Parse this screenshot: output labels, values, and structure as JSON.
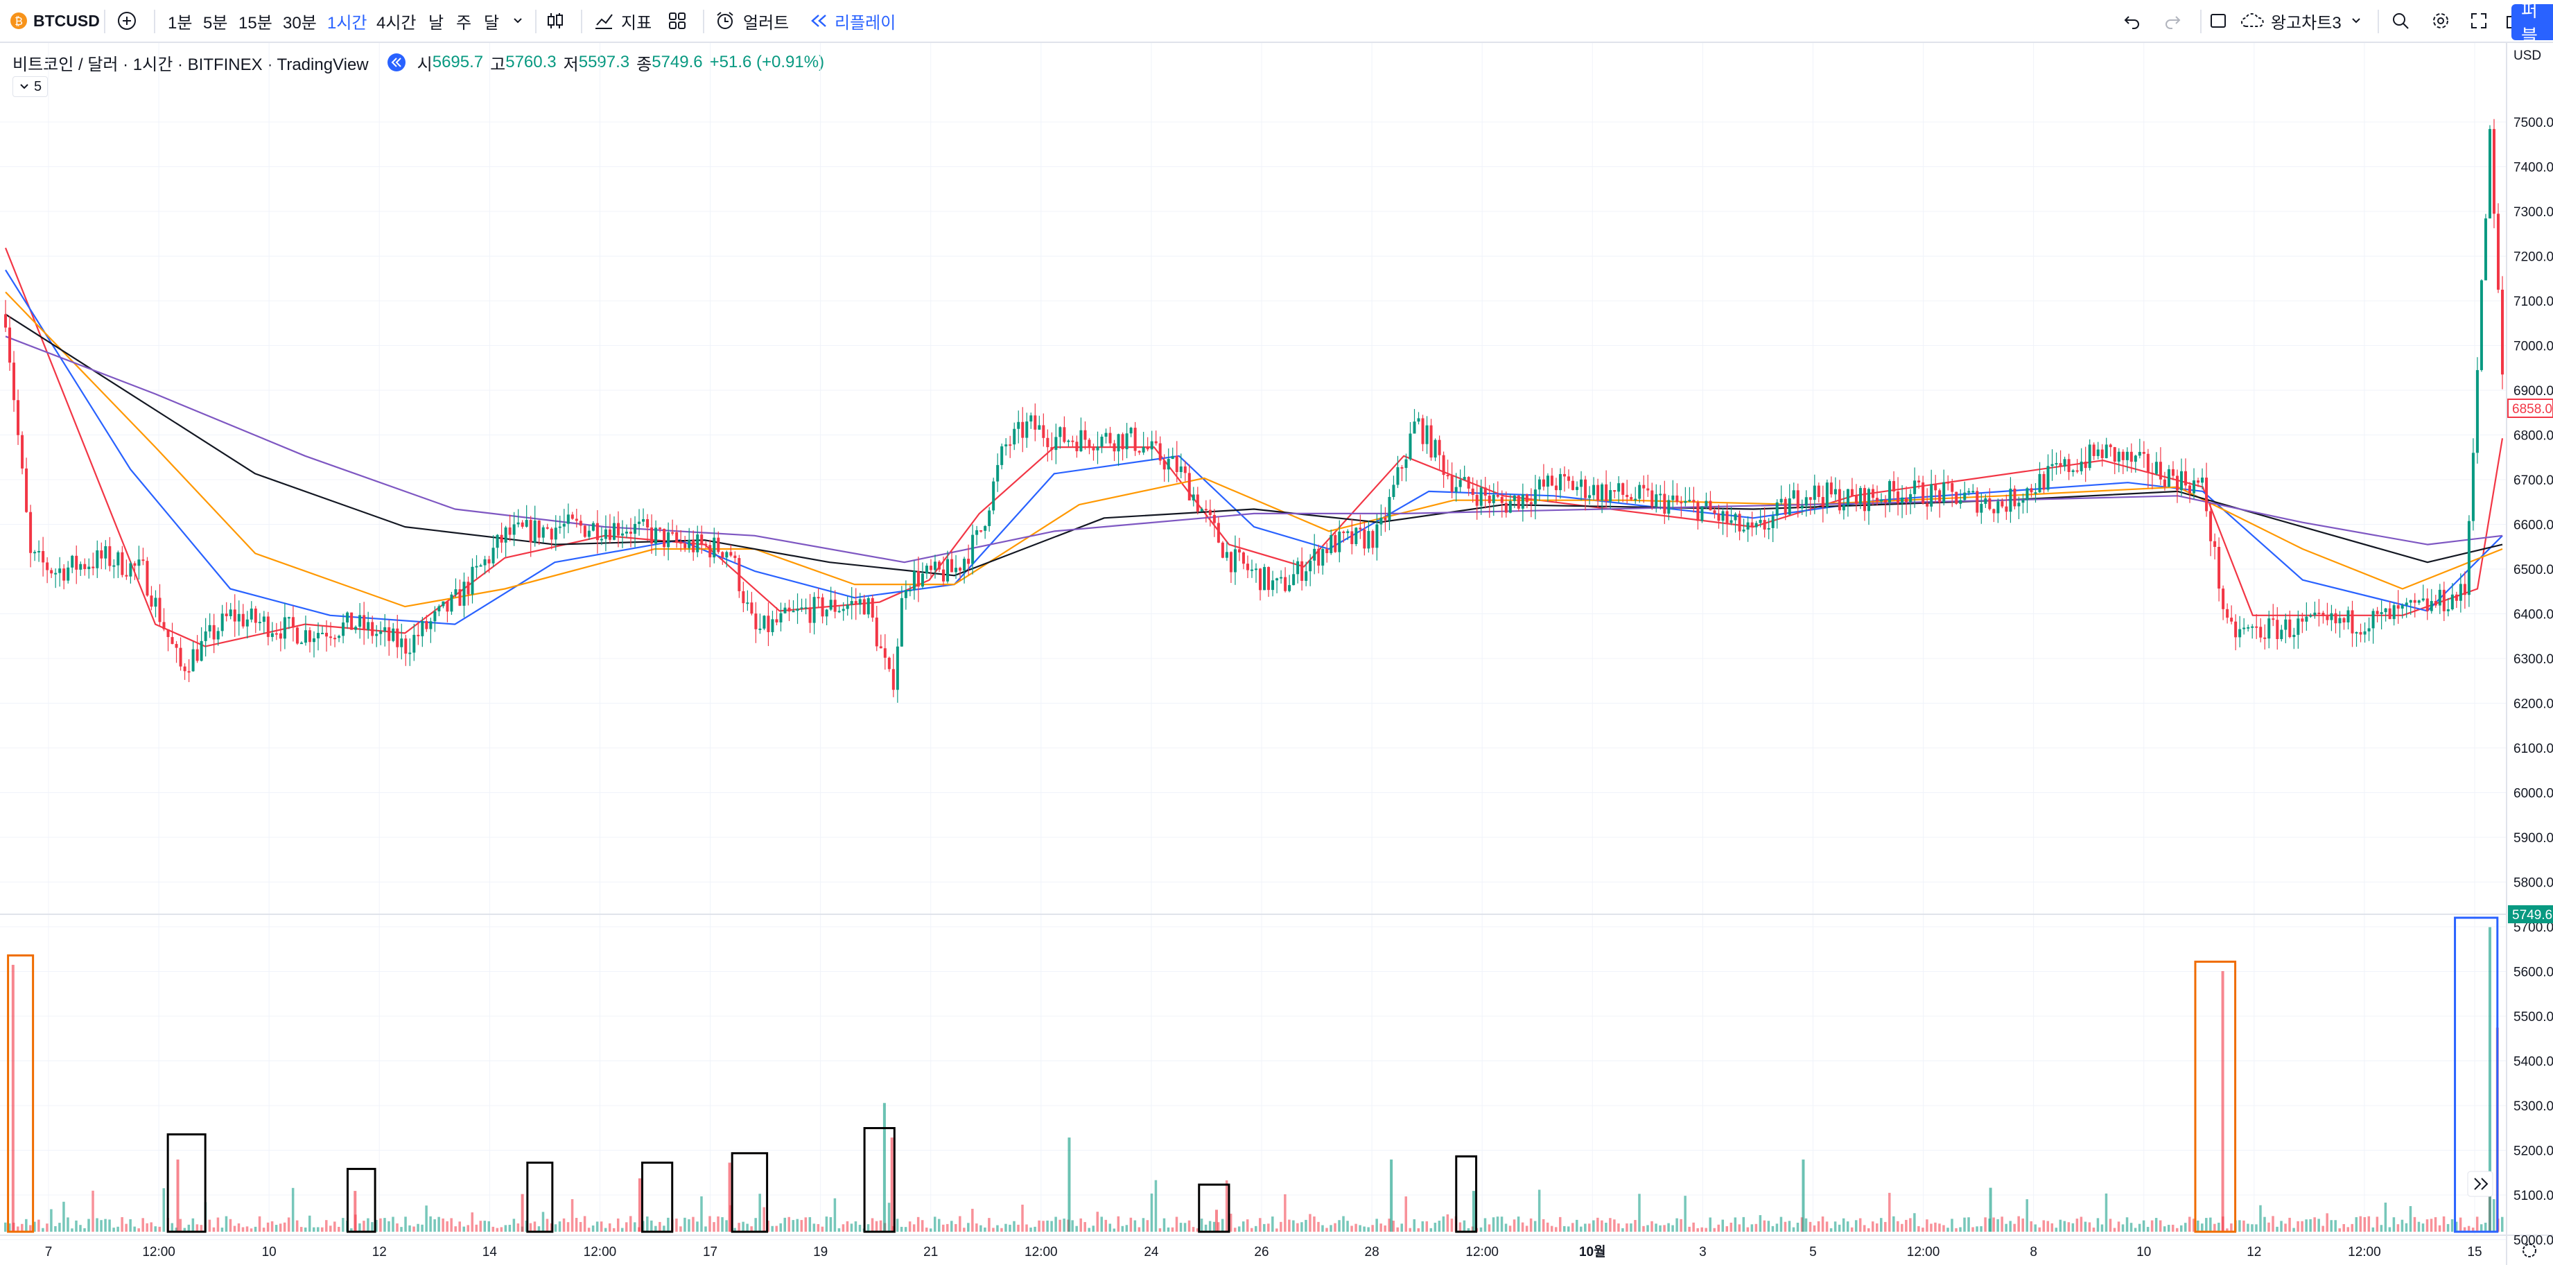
{
  "toolbar": {
    "symbol": "BTCUSD",
    "intervals": [
      "1분",
      "5분",
      "15분",
      "30분",
      "1시간",
      "4시간",
      "날",
      "주",
      "달"
    ],
    "active_interval": "1시간",
    "indicators_label": "지표",
    "alert_label": "얼러트",
    "replay_label": "리플레이",
    "layout_name": "왕고차트3",
    "publish_label": "퍼블"
  },
  "legend": {
    "title": "비트코인 / 달러 · 1시간 · BITFINEX · TradingView",
    "o_label": "시",
    "o_value": "5695.7",
    "h_label": "고",
    "h_value": "5760.3",
    "l_label": "저",
    "l_value": "5597.3",
    "c_label": "종",
    "c_value": "5749.6",
    "change": "+51.6 (+0.91%)",
    "collapse": "5"
  },
  "price_axis": {
    "currency": "USD",
    "labels": [
      "7500.0",
      "7400.0",
      "7300.0",
      "7200.0",
      "7100.0",
      "7000.0",
      "6900.0",
      "6800.0",
      "6700.0",
      "6600.0",
      "6500.0",
      "6400.0",
      "6300.0",
      "6200.0",
      "6100.0",
      "6000.0",
      "5900.0",
      "5800.0",
      "5700.0",
      "5600.0",
      "5500.0",
      "5400.0",
      "5300.0",
      "5200.0",
      "5100.0",
      "5000.0"
    ],
    "badge_red": "6858.0",
    "badge_green": "5749.6"
  },
  "time_axis": {
    "labels": [
      "7",
      "12:00",
      "10",
      "12",
      "14",
      "12:00",
      "17",
      "19",
      "21",
      "12:00",
      "24",
      "26",
      "28",
      "12:00",
      "10월",
      "3",
      "5",
      "12:00",
      "8",
      "10",
      "12",
      "12:00",
      "15"
    ]
  },
  "colors": {
    "up": "#089981",
    "down": "#f23645",
    "ma_red": "#f23645",
    "ma_blue": "#2962ff",
    "ma_orange": "#ff9800",
    "ma_black": "#131722",
    "ma_purple": "#7e57c2",
    "box_black": "#000000",
    "box_orange": "#ef6c00",
    "box_blue": "#2962ff"
  },
  "chart_data": {
    "type": "line",
    "price_range": [
      5750,
      7550
    ],
    "close_path": [
      {
        "t": 0,
        "p": 7000
      },
      {
        "t": 0.01,
        "p": 6450
      },
      {
        "t": 0.02,
        "p": 6420
      },
      {
        "t": 0.04,
        "p": 6450
      },
      {
        "t": 0.055,
        "p": 6420
      },
      {
        "t": 0.07,
        "p": 6200
      },
      {
        "t": 0.09,
        "p": 6320
      },
      {
        "t": 0.12,
        "p": 6280
      },
      {
        "t": 0.14,
        "p": 6300
      },
      {
        "t": 0.16,
        "p": 6250
      },
      {
        "t": 0.18,
        "p": 6350
      },
      {
        "t": 0.2,
        "p": 6500
      },
      {
        "t": 0.22,
        "p": 6520
      },
      {
        "t": 0.25,
        "p": 6520
      },
      {
        "t": 0.27,
        "p": 6480
      },
      {
        "t": 0.29,
        "p": 6470
      },
      {
        "t": 0.3,
        "p": 6280
      },
      {
        "t": 0.32,
        "p": 6330
      },
      {
        "t": 0.345,
        "p": 6350
      },
      {
        "t": 0.355,
        "p": 6150
      },
      {
        "t": 0.36,
        "p": 6400
      },
      {
        "t": 0.38,
        "p": 6420
      },
      {
        "t": 0.39,
        "p": 6500
      },
      {
        "t": 0.4,
        "p": 6700
      },
      {
        "t": 0.41,
        "p": 6750
      },
      {
        "t": 0.42,
        "p": 6720
      },
      {
        "t": 0.45,
        "p": 6720
      },
      {
        "t": 0.47,
        "p": 6650
      },
      {
        "t": 0.49,
        "p": 6450
      },
      {
        "t": 0.51,
        "p": 6380
      },
      {
        "t": 0.53,
        "p": 6480
      },
      {
        "t": 0.55,
        "p": 6500
      },
      {
        "t": 0.565,
        "p": 6760
      },
      {
        "t": 0.58,
        "p": 6620
      },
      {
        "t": 0.6,
        "p": 6570
      },
      {
        "t": 0.62,
        "p": 6620
      },
      {
        "t": 0.64,
        "p": 6600
      },
      {
        "t": 0.66,
        "p": 6580
      },
      {
        "t": 0.68,
        "p": 6560
      },
      {
        "t": 0.7,
        "p": 6500
      },
      {
        "t": 0.72,
        "p": 6600
      },
      {
        "t": 0.74,
        "p": 6580
      },
      {
        "t": 0.76,
        "p": 6600
      },
      {
        "t": 0.78,
        "p": 6590
      },
      {
        "t": 0.8,
        "p": 6570
      },
      {
        "t": 0.82,
        "p": 6640
      },
      {
        "t": 0.84,
        "p": 6690
      },
      {
        "t": 0.86,
        "p": 6650
      },
      {
        "t": 0.88,
        "p": 6610
      },
      {
        "t": 0.89,
        "p": 6280
      },
      {
        "t": 0.91,
        "p": 6290
      },
      {
        "t": 0.93,
        "p": 6300
      },
      {
        "t": 0.95,
        "p": 6310
      },
      {
        "t": 0.97,
        "p": 6340
      },
      {
        "t": 0.985,
        "p": 6370
      },
      {
        "t": 0.995,
        "p": 7400
      },
      {
        "t": 1.0,
        "p": 6860
      }
    ],
    "moving_averages": [
      {
        "color": "#f23645",
        "points": [
          [
            0,
            7150
          ],
          [
            0.06,
            6300
          ],
          [
            0.08,
            6250
          ],
          [
            0.12,
            6300
          ],
          [
            0.16,
            6280
          ],
          [
            0.2,
            6450
          ],
          [
            0.24,
            6500
          ],
          [
            0.28,
            6480
          ],
          [
            0.31,
            6330
          ],
          [
            0.35,
            6350
          ],
          [
            0.37,
            6400
          ],
          [
            0.39,
            6550
          ],
          [
            0.42,
            6700
          ],
          [
            0.46,
            6700
          ],
          [
            0.49,
            6480
          ],
          [
            0.52,
            6430
          ],
          [
            0.56,
            6680
          ],
          [
            0.6,
            6590
          ],
          [
            0.7,
            6520
          ],
          [
            0.74,
            6590
          ],
          [
            0.84,
            6670
          ],
          [
            0.88,
            6610
          ],
          [
            0.9,
            6320
          ],
          [
            0.96,
            6320
          ],
          [
            0.99,
            6380
          ],
          [
            1.0,
            6720
          ]
        ]
      },
      {
        "color": "#2962ff",
        "points": [
          [
            0,
            7100
          ],
          [
            0.05,
            6650
          ],
          [
            0.09,
            6380
          ],
          [
            0.13,
            6320
          ],
          [
            0.18,
            6300
          ],
          [
            0.22,
            6440
          ],
          [
            0.27,
            6490
          ],
          [
            0.3,
            6420
          ],
          [
            0.34,
            6360
          ],
          [
            0.38,
            6390
          ],
          [
            0.42,
            6640
          ],
          [
            0.47,
            6680
          ],
          [
            0.5,
            6520
          ],
          [
            0.53,
            6470
          ],
          [
            0.57,
            6600
          ],
          [
            0.62,
            6590
          ],
          [
            0.7,
            6540
          ],
          [
            0.75,
            6580
          ],
          [
            0.85,
            6620
          ],
          [
            0.88,
            6600
          ],
          [
            0.92,
            6400
          ],
          [
            0.97,
            6330
          ],
          [
            1.0,
            6500
          ]
        ]
      },
      {
        "color": "#ff9800",
        "points": [
          [
            0,
            7050
          ],
          [
            0.06,
            6700
          ],
          [
            0.1,
            6460
          ],
          [
            0.16,
            6340
          ],
          [
            0.2,
            6380
          ],
          [
            0.26,
            6470
          ],
          [
            0.3,
            6470
          ],
          [
            0.34,
            6390
          ],
          [
            0.38,
            6390
          ],
          [
            0.43,
            6570
          ],
          [
            0.48,
            6630
          ],
          [
            0.53,
            6510
          ],
          [
            0.58,
            6580
          ],
          [
            0.65,
            6580
          ],
          [
            0.72,
            6570
          ],
          [
            0.8,
            6590
          ],
          [
            0.87,
            6610
          ],
          [
            0.92,
            6470
          ],
          [
            0.96,
            6380
          ],
          [
            1.0,
            6470
          ]
        ]
      },
      {
        "color": "#131722",
        "points": [
          [
            0,
            7000
          ],
          [
            0.05,
            6820
          ],
          [
            0.1,
            6640
          ],
          [
            0.16,
            6520
          ],
          [
            0.22,
            6480
          ],
          [
            0.28,
            6490
          ],
          [
            0.33,
            6440
          ],
          [
            0.38,
            6410
          ],
          [
            0.44,
            6540
          ],
          [
            0.5,
            6560
          ],
          [
            0.55,
            6530
          ],
          [
            0.6,
            6570
          ],
          [
            0.7,
            6560
          ],
          [
            0.8,
            6580
          ],
          [
            0.87,
            6600
          ],
          [
            0.92,
            6520
          ],
          [
            0.97,
            6440
          ],
          [
            1.0,
            6480
          ]
        ]
      },
      {
        "color": "#7e57c2",
        "points": [
          [
            0,
            6950
          ],
          [
            0.06,
            6820
          ],
          [
            0.12,
            6680
          ],
          [
            0.18,
            6560
          ],
          [
            0.24,
            6520
          ],
          [
            0.3,
            6500
          ],
          [
            0.36,
            6440
          ],
          [
            0.42,
            6510
          ],
          [
            0.5,
            6550
          ],
          [
            0.56,
            6550
          ],
          [
            0.64,
            6560
          ],
          [
            0.72,
            6570
          ],
          [
            0.8,
            6580
          ],
          [
            0.87,
            6590
          ],
          [
            0.92,
            6530
          ],
          [
            0.97,
            6480
          ],
          [
            1.0,
            6500
          ]
        ]
      }
    ],
    "volume_spikes": [
      {
        "t": 0.003,
        "v": 0.85,
        "dir": "down"
      },
      {
        "t": 0.069,
        "v": 0.23,
        "dir": "down"
      },
      {
        "t": 0.14,
        "v": 0.13,
        "dir": "down"
      },
      {
        "t": 0.207,
        "v": 0.12,
        "dir": "down"
      },
      {
        "t": 0.254,
        "v": 0.17,
        "dir": "down"
      },
      {
        "t": 0.29,
        "v": 0.22,
        "dir": "down"
      },
      {
        "t": 0.352,
        "v": 0.41,
        "dir": "up"
      },
      {
        "t": 0.355,
        "v": 0.3,
        "dir": "down"
      },
      {
        "t": 0.426,
        "v": 0.3,
        "dir": "up"
      },
      {
        "t": 0.485,
        "v": 0.07,
        "dir": "down"
      },
      {
        "t": 0.555,
        "v": 0.23,
        "dir": "up"
      },
      {
        "t": 0.588,
        "v": 0.13,
        "dir": "up"
      },
      {
        "t": 0.72,
        "v": 0.23,
        "dir": "up"
      },
      {
        "t": 0.795,
        "v": 0.14,
        "dir": "up"
      },
      {
        "t": 0.888,
        "v": 0.83,
        "dir": "down"
      },
      {
        "t": 0.995,
        "v": 0.97,
        "dir": "up"
      },
      {
        "t": 0.998,
        "v": 0.65,
        "dir": "down"
      }
    ],
    "annotation_boxes": [
      {
        "color": "black",
        "t_from": 0.065,
        "t_to": 0.08,
        "v_top": 0.31
      },
      {
        "color": "black",
        "t_from": 0.137,
        "t_to": 0.148,
        "v_top": 0.2
      },
      {
        "color": "black",
        "t_from": 0.209,
        "t_to": 0.219,
        "v_top": 0.22
      },
      {
        "color": "black",
        "t_from": 0.255,
        "t_to": 0.267,
        "v_top": 0.22
      },
      {
        "color": "black",
        "t_from": 0.291,
        "t_to": 0.305,
        "v_top": 0.25
      },
      {
        "color": "black",
        "t_from": 0.344,
        "t_to": 0.356,
        "v_top": 0.33
      },
      {
        "color": "black",
        "t_from": 0.478,
        "t_to": 0.49,
        "v_top": 0.15
      },
      {
        "color": "black",
        "t_from": 0.581,
        "t_to": 0.589,
        "v_top": 0.24
      },
      {
        "color": "orange",
        "t_from": 0.001,
        "t_to": 0.011,
        "v_top": 0.88
      },
      {
        "color": "orange",
        "t_from": 0.877,
        "t_to": 0.893,
        "v_top": 0.86
      },
      {
        "color": "blue",
        "t_from": 0.981,
        "t_to": 0.998,
        "v_top": 1.0
      }
    ]
  }
}
